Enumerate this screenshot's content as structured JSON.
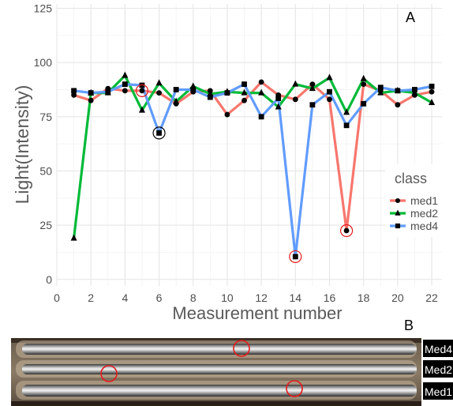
{
  "panels": {
    "a_label": "A",
    "b_label": "B"
  },
  "chart_data": {
    "type": "line",
    "title": "",
    "xlabel": "Measurement number",
    "ylabel": "Light(Intensity)",
    "xlim": [
      0,
      22.6
    ],
    "ylim": [
      -3,
      127
    ],
    "xticks": [
      0,
      2,
      4,
      6,
      8,
      10,
      12,
      14,
      16,
      18,
      20,
      22
    ],
    "yticks": [
      0,
      25,
      50,
      75,
      100,
      125
    ],
    "grid": true,
    "legend": {
      "title": "class",
      "position": "right"
    },
    "x": [
      1,
      2,
      3,
      4,
      5,
      6,
      7,
      8,
      9,
      10,
      11,
      12,
      13,
      14,
      15,
      16,
      17,
      18,
      19,
      20,
      21,
      22
    ],
    "series": [
      {
        "name": "med1",
        "color": "#F8766D",
        "marker": "circle",
        "values": [
          85,
          82.5,
          88,
          87,
          87,
          86,
          81,
          86.5,
          87,
          76,
          82.5,
          91,
          85,
          83,
          90,
          83,
          22.5,
          90,
          87,
          80.5,
          85,
          86.5
        ]
      },
      {
        "name": "med2",
        "color": "#00BA38",
        "marker": "triangle",
        "values": [
          19,
          86,
          86,
          94,
          78,
          90.5,
          82,
          89,
          85.5,
          86.5,
          86,
          86,
          79.5,
          90,
          88,
          93,
          77,
          92.5,
          86,
          87,
          86,
          81.5
        ]
      },
      {
        "name": "med4",
        "color": "#619CFF",
        "marker": "square",
        "values": [
          87,
          86,
          86.5,
          90,
          89.5,
          67.5,
          87.5,
          87.5,
          84,
          86,
          90,
          75,
          83.5,
          10.5,
          80.5,
          86.5,
          71,
          81,
          88.5,
          87,
          87.5,
          89
        ]
      }
    ],
    "circled_points": [
      {
        "series": "med1",
        "x": 5,
        "color": "#E41A1C"
      },
      {
        "series": "med4",
        "x": 6,
        "color": "#000000"
      },
      {
        "series": "med4",
        "x": 14,
        "color": "#E41A1C"
      },
      {
        "series": "med1",
        "x": 17,
        "color": "#E41A1C"
      }
    ]
  },
  "photo": {
    "labels": [
      "Med4",
      "Med2",
      "Med1"
    ],
    "circle_color": "#E41A1C"
  }
}
